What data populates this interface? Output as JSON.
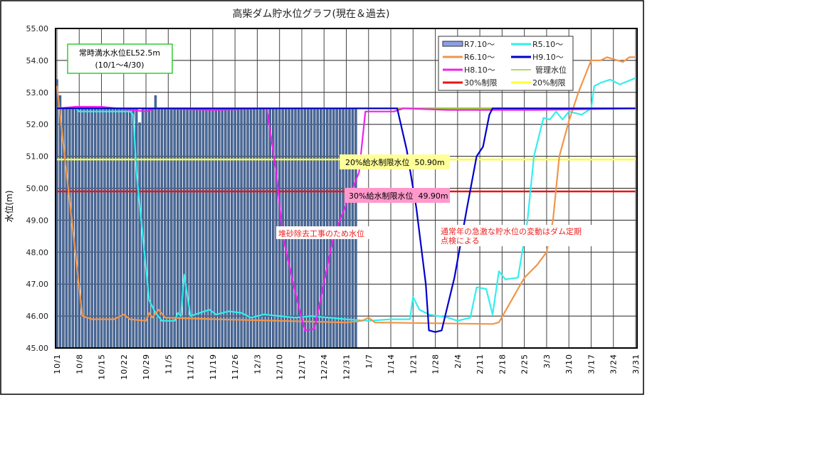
{
  "chart_data": {
    "type": "bar+line",
    "title": "高柴ダム貯水位グラフ(現在＆過去)",
    "ylabel": "水位(m)",
    "xlabel": "",
    "ylim": [
      45,
      55
    ],
    "xlim": [
      "10/1",
      "3/31"
    ],
    "grid": true,
    "legend_position": "top-right",
    "y_ticks": [
      "45.00",
      "46.00",
      "47.00",
      "48.00",
      "49.00",
      "50.00",
      "51.00",
      "52.00",
      "53.00",
      "54.00",
      "55.00"
    ],
    "x_ticks": [
      "10/1",
      "10/8",
      "10/15",
      "10/22",
      "10/29",
      "11/5",
      "11/12",
      "11/19",
      "11/26",
      "12/3",
      "12/10",
      "12/17",
      "12/24",
      "12/31",
      "1/7",
      "1/14",
      "1/21",
      "1/28",
      "2/4",
      "2/11",
      "2/18",
      "2/25",
      "3/3",
      "3/10",
      "3/17",
      "3/24",
      "3/31"
    ],
    "bar_series": {
      "name": "R7.10～",
      "color": "#4a6a9a",
      "legend_color": "#8e9ee6",
      "start": "10/1",
      "values": [
        53.4,
        52.9,
        52.5,
        52.5,
        52.5,
        52.5,
        52.5,
        52.5,
        52.5,
        52.5,
        52.5,
        52.5,
        52.5,
        52.5,
        52.5,
        52.5,
        52.5,
        52.5,
        52.5,
        52.5,
        52.5,
        52.5,
        52.5,
        52.5,
        52.5,
        52.5,
        52.05,
        52.5,
        52.5,
        52.5,
        52.5,
        52.9,
        52.5,
        52.5,
        52.5,
        52.5,
        52.5,
        52.5,
        52.5,
        52.5,
        52.5,
        52.5,
        52.5,
        52.5,
        52.5,
        52.5,
        52.5,
        52.5,
        52.5,
        52.5,
        52.5,
        52.5,
        52.5,
        52.5,
        52.5,
        52.5,
        52.5,
        52.5,
        52.5,
        52.5,
        52.5,
        52.5,
        52.5,
        52.5,
        52.5,
        52.5,
        52.5,
        52.5,
        52.5,
        52.5,
        52.5,
        52.5,
        52.5,
        52.5,
        52.5,
        52.5,
        52.5,
        52.5,
        52.5,
        52.5,
        52.5,
        52.5,
        52.5,
        52.5,
        52.5,
        52.5,
        52.5,
        52.5,
        52.5,
        52.5,
        52.5,
        52.5,
        52.5,
        52.5,
        52.5
      ]
    },
    "series": [
      {
        "name": "R5.10～",
        "color": "#33eeee",
        "points": [
          [
            "10/1",
            52.5
          ],
          [
            "10/7",
            52.5
          ],
          [
            "10/8",
            52.4
          ],
          [
            "10/24",
            52.4
          ],
          [
            "10/25",
            52.3
          ],
          [
            "10/26",
            50.5
          ],
          [
            "10/28",
            48.5
          ],
          [
            "10/30",
            46.5
          ],
          [
            "11/1",
            46.1
          ],
          [
            "11/3",
            45.85
          ],
          [
            "11/7",
            45.85
          ],
          [
            "11/8",
            46.1
          ],
          [
            "11/9",
            46.0
          ],
          [
            "11/10",
            47.3
          ],
          [
            "11/12",
            46.0
          ],
          [
            "11/15",
            46.1
          ],
          [
            "11/18",
            46.2
          ],
          [
            "11/20",
            46.05
          ],
          [
            "11/24",
            46.15
          ],
          [
            "11/28",
            46.1
          ],
          [
            "12/1",
            45.95
          ],
          [
            "12/5",
            46.05
          ],
          [
            "12/10",
            46.0
          ],
          [
            "12/15",
            45.95
          ],
          [
            "12/20",
            46.0
          ],
          [
            "12/31",
            45.9
          ],
          [
            "1/7",
            45.85
          ],
          [
            "1/14",
            45.9
          ],
          [
            "1/20",
            45.9
          ],
          [
            "1/21",
            46.6
          ],
          [
            "1/23",
            46.2
          ],
          [
            "1/26",
            46.05
          ],
          [
            "2/1",
            45.95
          ],
          [
            "2/4",
            45.85
          ],
          [
            "2/8",
            45.95
          ],
          [
            "2/10",
            46.9
          ],
          [
            "2/13",
            46.85
          ],
          [
            "2/15",
            46.05
          ],
          [
            "2/17",
            47.4
          ],
          [
            "2/19",
            47.15
          ],
          [
            "2/23",
            47.2
          ],
          [
            "2/26",
            49.0
          ],
          [
            "2/28",
            51.0
          ],
          [
            "3/2",
            52.2
          ],
          [
            "3/4",
            52.15
          ],
          [
            "3/6",
            52.4
          ],
          [
            "3/8",
            52.15
          ],
          [
            "3/10",
            52.4
          ],
          [
            "3/14",
            52.3
          ],
          [
            "3/17",
            52.5
          ],
          [
            "3/18",
            53.2
          ],
          [
            "3/20",
            53.3
          ],
          [
            "3/23",
            53.4
          ],
          [
            "3/26",
            53.25
          ],
          [
            "3/31",
            53.45
          ]
        ]
      },
      {
        "name": "R6.10～",
        "color": "#f0964a",
        "points": [
          [
            "10/1",
            53.2
          ],
          [
            "10/9",
            46.0
          ],
          [
            "10/12",
            45.9
          ],
          [
            "10/19",
            45.9
          ],
          [
            "10/22",
            46.05
          ],
          [
            "10/24",
            45.9
          ],
          [
            "10/29",
            45.85
          ],
          [
            "10/30",
            46.1
          ],
          [
            "10/31",
            45.95
          ],
          [
            "11/2",
            46.2
          ],
          [
            "11/4",
            45.95
          ],
          [
            "11/20",
            45.9
          ],
          [
            "12/10",
            45.85
          ],
          [
            "12/31",
            45.8
          ],
          [
            "1/5",
            45.85
          ],
          [
            "1/7",
            45.95
          ],
          [
            "1/9",
            45.8
          ],
          [
            "2/15",
            45.75
          ],
          [
            "2/17",
            45.8
          ],
          [
            "2/25",
            47.2
          ],
          [
            "2/29",
            47.6
          ],
          [
            "3/3",
            48.0
          ],
          [
            "3/5",
            49.0
          ],
          [
            "3/7",
            51.0
          ],
          [
            "3/10",
            52.1
          ],
          [
            "3/13",
            53.0
          ],
          [
            "3/17",
            54.0
          ],
          [
            "3/20",
            54.0
          ],
          [
            "3/22",
            54.1
          ],
          [
            "3/27",
            53.95
          ],
          [
            "3/29",
            54.1
          ],
          [
            "3/31",
            54.1
          ]
        ]
      },
      {
        "name": "H9.10～",
        "color": "#0000cc",
        "points": [
          [
            "10/1",
            52.5
          ],
          [
            "1/16",
            52.5
          ],
          [
            "1/19",
            51.2
          ],
          [
            "1/22",
            49.4
          ],
          [
            "1/25",
            47.0
          ],
          [
            "1/26",
            45.55
          ],
          [
            "1/28",
            45.5
          ],
          [
            "1/30",
            45.55
          ],
          [
            "2/3",
            47.2
          ],
          [
            "2/7",
            49.4
          ],
          [
            "2/10",
            51.0
          ],
          [
            "2/12",
            51.3
          ],
          [
            "2/14",
            52.3
          ],
          [
            "2/15",
            52.5
          ],
          [
            "3/31",
            52.5
          ]
        ]
      },
      {
        "name": "H8.10～",
        "color": "#ee22ee",
        "points": [
          [
            "10/1",
            52.5
          ],
          [
            "10/7",
            52.55
          ],
          [
            "10/15",
            52.55
          ],
          [
            "10/29",
            52.4
          ],
          [
            "11/1",
            52.5
          ],
          [
            "11/19",
            52.45
          ],
          [
            "12/6",
            52.5
          ],
          [
            "12/9",
            50.5
          ],
          [
            "12/11",
            48.5
          ],
          [
            "12/16",
            46.3
          ],
          [
            "12/18",
            45.55
          ],
          [
            "12/21",
            45.6
          ],
          [
            "12/27",
            48.5
          ],
          [
            "1/4",
            50.5
          ],
          [
            "1/6",
            52.4
          ],
          [
            "1/15",
            52.4
          ],
          [
            "1/18",
            52.5
          ],
          [
            "2/1",
            52.45
          ],
          [
            "2/29",
            52.45
          ],
          [
            "3/31",
            52.5
          ]
        ]
      },
      {
        "name": "管理水位",
        "color": "#99cc33",
        "points": [
          [
            "10/1",
            52.5
          ],
          [
            "3/31",
            52.5
          ]
        ]
      },
      {
        "name": "30%制限",
        "color": "#ee1111",
        "points": [
          [
            "10/1",
            49.9
          ],
          [
            "3/31",
            49.9
          ]
        ]
      },
      {
        "name": "20%制限",
        "color": "#ffff33",
        "points": [
          [
            "10/1",
            50.9
          ],
          [
            "3/31",
            50.9
          ]
        ]
      }
    ],
    "annotations": {
      "full_level_line1": "常時満水水位EL52.5m",
      "full_level_line2": "(10/1～4/30)",
      "limit20_label": "20%給水制限水位  50.90m",
      "limit30_label": "30%給水制限水位  49.90m",
      "sediment_note": "堆砂除去工事のため水位",
      "inspection_note_line1": "通常年の急激な貯水位の変動はダム定期",
      "inspection_note_line2": "点検による"
    }
  }
}
